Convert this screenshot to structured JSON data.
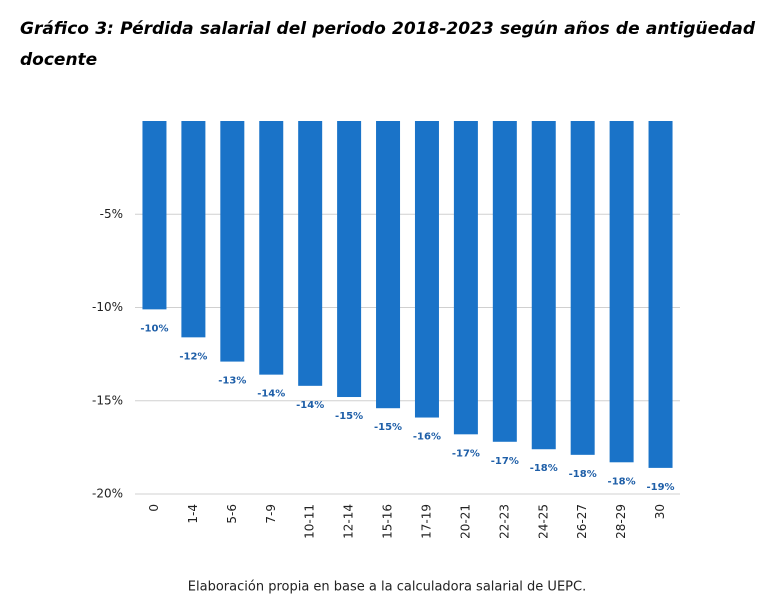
{
  "chart_data": {
    "type": "bar",
    "title": "Gráfico 3: Pérdida salarial del periodo 2018-2023 según años de antigüedad docente",
    "categories": [
      "0",
      "1-4",
      "5-6",
      "7-9",
      "10-11",
      "12-14",
      "15-16",
      "17-19",
      "20-21",
      "22-23",
      "24-25",
      "26-27",
      "28-29",
      "30"
    ],
    "values": [
      -10.1,
      -11.6,
      -12.9,
      -13.6,
      -14.2,
      -14.8,
      -15.4,
      -15.9,
      -16.8,
      -17.2,
      -17.6,
      -17.9,
      -18.3,
      -18.6
    ],
    "value_labels": [
      "-10%",
      "-12%",
      "-13%",
      "-14%",
      "-14%",
      "-15%",
      "-15%",
      "-16%",
      "-17%",
      "-17%",
      "-18%",
      "-18%",
      "-18%",
      "-19%"
    ],
    "color": "#1a73c8",
    "ylim": [
      -20,
      0
    ],
    "yticks": [
      {
        "value": -20,
        "label": "-20%"
      },
      {
        "value": -15,
        "label": "-15%"
      },
      {
        "value": -10,
        "label": "-10%"
      },
      {
        "value": -5,
        "label": "-5%"
      }
    ],
    "grid": true,
    "source": "Elaboración propia en base a la calculadora salarial  de UEPC."
  }
}
